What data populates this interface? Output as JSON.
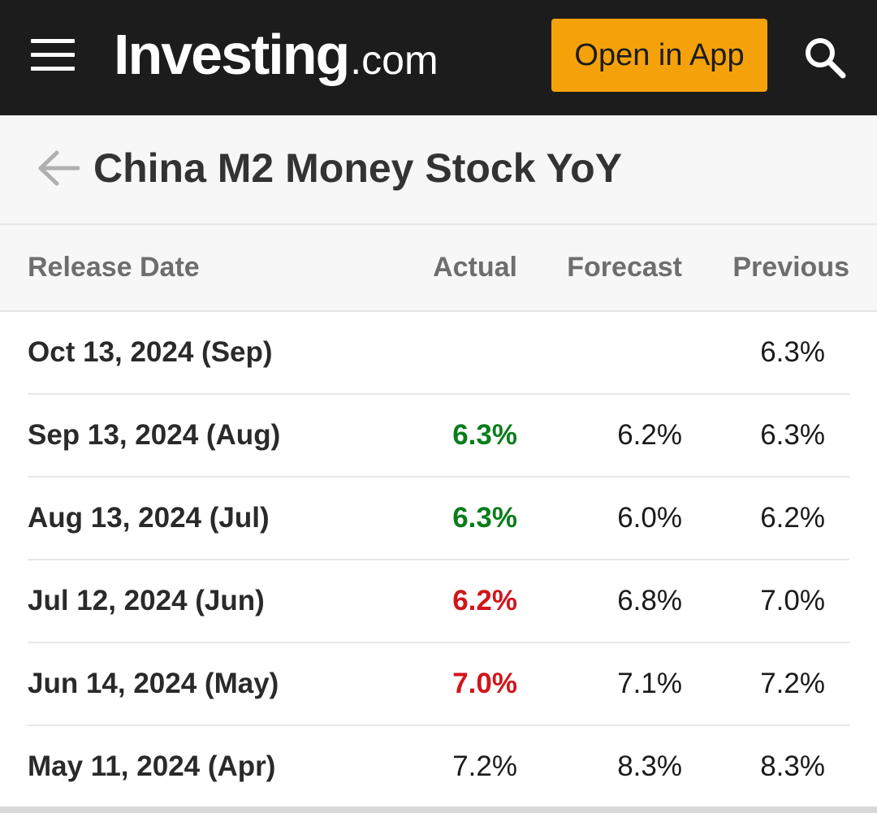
{
  "header": {
    "brand": "Investing",
    "tld": ".com",
    "open_app_label": "Open in App",
    "menu_icon": "hamburger-menu-icon",
    "search_icon": "search-icon",
    "background_color": "#1c1c1c",
    "button_color": "#f5a20a"
  },
  "page": {
    "title": "China M2 Money Stock YoY",
    "back_icon": "arrow-left-icon"
  },
  "table": {
    "columns": {
      "release_date": "Release Date",
      "actual": "Actual",
      "forecast": "Forecast",
      "previous": "Previous"
    },
    "rows": [
      {
        "date": "Oct 13, 2024 (Sep)",
        "actual": "",
        "forecast": "",
        "previous": "6.3%"
      },
      {
        "date": "Sep 13, 2024 (Aug)",
        "actual": "6.3%",
        "actual_status": "up",
        "forecast": "6.2%",
        "previous": "6.3%"
      },
      {
        "date": "Aug 13, 2024 (Jul)",
        "actual": "6.3%",
        "actual_status": "up",
        "forecast": "6.0%",
        "previous": "6.2%"
      },
      {
        "date": "Jul 12, 2024 (Jun)",
        "actual": "6.2%",
        "actual_status": "down",
        "forecast": "6.8%",
        "previous": "7.0%"
      },
      {
        "date": "Jun 14, 2024 (May)",
        "actual": "7.0%",
        "actual_status": "down",
        "forecast": "7.1%",
        "previous": "7.2%"
      },
      {
        "date": "May 11, 2024 (Apr)",
        "actual": "7.2%",
        "actual_status": "neutral",
        "forecast": "8.3%",
        "previous": "8.3%"
      }
    ],
    "status_colors": {
      "up": "#0a7d1a",
      "down": "#d0161b",
      "neutral": "#1a1a1a"
    }
  }
}
